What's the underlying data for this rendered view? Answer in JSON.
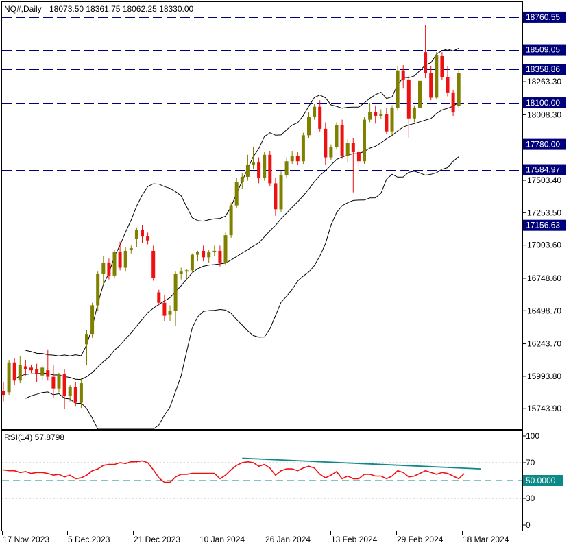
{
  "header": {
    "symbol": "NQ#,Daily",
    "ohlc": "18073.50 18361.75 18062.25 18330.00"
  },
  "colors": {
    "bull": "#808000",
    "bear": "#ee1111",
    "level_line": "#00007a",
    "level_badge": "#00007a",
    "band": "#000000",
    "rsi": "#ee1111",
    "trend": "#0b8a88",
    "rsi_mid": "#0b8a88",
    "current_badge": "#0b8a88",
    "axis": "#000000",
    "gray_line": "#aaaaaa"
  },
  "chart_data": [
    {
      "type": "candlestick",
      "title": "NQ#,Daily 18073.50 18361.75 18062.25 18330.00",
      "y_ticks": [
        "18263.30",
        "18008.30",
        "17503.40",
        "17253.50",
        "17003.60",
        "16748.60",
        "16498.70",
        "16243.70",
        "15993.80",
        "15743.90"
      ],
      "x_ticks": [
        "17 Nov 2023",
        "5 Dec 2023",
        "21 Dec 2023",
        "10 Jan 2024",
        "26 Jan 2024",
        "13 Feb 2024",
        "29 Feb 2024",
        "18 Mar 2024"
      ],
      "ylim": [
        15630,
        18870
      ],
      "horizontal_levels": [
        {
          "value": 18760.55,
          "label": "18760.55"
        },
        {
          "value": 18509.05,
          "label": "18509.05"
        },
        {
          "value": 18358.86,
          "label": "18358.86"
        },
        {
          "value": 18100.0,
          "label": "18100.00"
        },
        {
          "value": 17780.0,
          "label": "17780.00"
        },
        {
          "value": 17584.97,
          "label": "17584.97"
        },
        {
          "value": 17156.63,
          "label": "17156.63"
        }
      ],
      "current_price_line": 18330.0,
      "candles": [
        {
          "o": 15880,
          "h": 15950,
          "l": 15800,
          "c": 15850
        },
        {
          "o": 15870,
          "h": 16120,
          "l": 15850,
          "c": 16100
        },
        {
          "o": 16100,
          "h": 16130,
          "l": 15930,
          "c": 15960
        },
        {
          "o": 15960,
          "h": 16150,
          "l": 15940,
          "c": 16080
        },
        {
          "o": 16070,
          "h": 16120,
          "l": 16000,
          "c": 16050
        },
        {
          "o": 16060,
          "h": 16080,
          "l": 16020,
          "c": 16040
        },
        {
          "o": 16050,
          "h": 16090,
          "l": 15950,
          "c": 16010
        },
        {
          "o": 16000,
          "h": 16080,
          "l": 15960,
          "c": 16060
        },
        {
          "o": 16040,
          "h": 16200,
          "l": 15960,
          "c": 15990
        },
        {
          "o": 15990,
          "h": 16080,
          "l": 15830,
          "c": 15900
        },
        {
          "o": 15900,
          "h": 16020,
          "l": 15870,
          "c": 16010
        },
        {
          "o": 16010,
          "h": 16050,
          "l": 15740,
          "c": 15840
        },
        {
          "o": 15840,
          "h": 15930,
          "l": 15800,
          "c": 15910
        },
        {
          "o": 15910,
          "h": 15950,
          "l": 15760,
          "c": 15790
        },
        {
          "o": 15790,
          "h": 15980,
          "l": 15750,
          "c": 15940
        },
        {
          "o": 16240,
          "h": 16350,
          "l": 16080,
          "c": 16320
        },
        {
          "o": 16320,
          "h": 16560,
          "l": 16290,
          "c": 16540
        },
        {
          "o": 16540,
          "h": 16800,
          "l": 16500,
          "c": 16780
        },
        {
          "o": 16780,
          "h": 16920,
          "l": 16690,
          "c": 16870
        },
        {
          "o": 16870,
          "h": 16900,
          "l": 16740,
          "c": 16770
        },
        {
          "o": 16770,
          "h": 16970,
          "l": 16750,
          "c": 16950
        },
        {
          "o": 16950,
          "h": 17030,
          "l": 16810,
          "c": 16830
        },
        {
          "o": 16830,
          "h": 16990,
          "l": 16800,
          "c": 16960
        },
        {
          "o": 16970,
          "h": 17000,
          "l": 16940,
          "c": 16980
        },
        {
          "o": 17050,
          "h": 17140,
          "l": 16990,
          "c": 17120
        },
        {
          "o": 17120,
          "h": 17160,
          "l": 17020,
          "c": 17070
        },
        {
          "o": 17070,
          "h": 17100,
          "l": 17010,
          "c": 17040
        },
        {
          "o": 16960,
          "h": 17000,
          "l": 16730,
          "c": 16750
        },
        {
          "o": 16640,
          "h": 16660,
          "l": 16540,
          "c": 16560
        },
        {
          "o": 16560,
          "h": 16620,
          "l": 16420,
          "c": 16460
        },
        {
          "o": 16470,
          "h": 16540,
          "l": 16420,
          "c": 16500
        },
        {
          "o": 16500,
          "h": 16800,
          "l": 16380,
          "c": 16780
        },
        {
          "o": 16780,
          "h": 16830,
          "l": 16740,
          "c": 16800
        },
        {
          "o": 16800,
          "h": 16820,
          "l": 16740,
          "c": 16810
        },
        {
          "o": 16810,
          "h": 16940,
          "l": 16790,
          "c": 16930
        },
        {
          "o": 16930,
          "h": 16960,
          "l": 16880,
          "c": 16950
        },
        {
          "o": 16960,
          "h": 17000,
          "l": 16880,
          "c": 16910
        },
        {
          "o": 16910,
          "h": 16970,
          "l": 16870,
          "c": 16950
        },
        {
          "o": 16950,
          "h": 17000,
          "l": 16920,
          "c": 16960
        },
        {
          "o": 16960,
          "h": 17000,
          "l": 16840,
          "c": 16870
        },
        {
          "o": 16870,
          "h": 17100,
          "l": 16850,
          "c": 17080
        },
        {
          "o": 17080,
          "h": 17330,
          "l": 17060,
          "c": 17310
        },
        {
          "o": 17310,
          "h": 17520,
          "l": 17290,
          "c": 17490
        },
        {
          "o": 17490,
          "h": 17560,
          "l": 17440,
          "c": 17530
        },
        {
          "o": 17530,
          "h": 17700,
          "l": 17500,
          "c": 17620
        },
        {
          "o": 17620,
          "h": 17760,
          "l": 17590,
          "c": 17640
        },
        {
          "o": 17640,
          "h": 17680,
          "l": 17480,
          "c": 17520
        },
        {
          "o": 17520,
          "h": 17720,
          "l": 17500,
          "c": 17700
        },
        {
          "o": 17700,
          "h": 17730,
          "l": 17460,
          "c": 17480
        },
        {
          "o": 17480,
          "h": 17520,
          "l": 17230,
          "c": 17280
        },
        {
          "o": 17280,
          "h": 17570,
          "l": 17260,
          "c": 17540
        },
        {
          "o": 17540,
          "h": 17680,
          "l": 17520,
          "c": 17650
        },
        {
          "o": 17650,
          "h": 17730,
          "l": 17630,
          "c": 17690
        },
        {
          "o": 17690,
          "h": 17720,
          "l": 17620,
          "c": 17650
        },
        {
          "o": 17650,
          "h": 17870,
          "l": 17630,
          "c": 17850
        },
        {
          "o": 17850,
          "h": 18030,
          "l": 17830,
          "c": 17990
        },
        {
          "o": 17990,
          "h": 18090,
          "l": 17970,
          "c": 18070
        },
        {
          "o": 18070,
          "h": 18120,
          "l": 17880,
          "c": 17900
        },
        {
          "o": 17900,
          "h": 17950,
          "l": 17620,
          "c": 17680
        },
        {
          "o": 17680,
          "h": 17780,
          "l": 17660,
          "c": 17760
        },
        {
          "o": 17760,
          "h": 17950,
          "l": 17740,
          "c": 17930
        },
        {
          "o": 17930,
          "h": 17970,
          "l": 17670,
          "c": 17690
        },
        {
          "o": 17690,
          "h": 17820,
          "l": 17640,
          "c": 17790
        },
        {
          "o": 17790,
          "h": 17830,
          "l": 17410,
          "c": 17720
        },
        {
          "o": 17720,
          "h": 17740,
          "l": 17550,
          "c": 17650
        },
        {
          "o": 17650,
          "h": 17990,
          "l": 17630,
          "c": 17970
        },
        {
          "o": 17970,
          "h": 18100,
          "l": 17950,
          "c": 18030
        },
        {
          "o": 18030,
          "h": 18080,
          "l": 17940,
          "c": 18000
        },
        {
          "o": 18000,
          "h": 18050,
          "l": 17980,
          "c": 18010
        },
        {
          "o": 18010,
          "h": 18060,
          "l": 17860,
          "c": 17880
        },
        {
          "o": 17880,
          "h": 18080,
          "l": 17850,
          "c": 18060
        },
        {
          "o": 18060,
          "h": 18380,
          "l": 18040,
          "c": 18350
        },
        {
          "o": 18350,
          "h": 18390,
          "l": 18210,
          "c": 18280
        },
        {
          "o": 18280,
          "h": 18310,
          "l": 17830,
          "c": 17980
        },
        {
          "o": 17980,
          "h": 18080,
          "l": 17950,
          "c": 18060
        },
        {
          "o": 18060,
          "h": 18290,
          "l": 17940,
          "c": 18270
        },
        {
          "o": 18490,
          "h": 18700,
          "l": 18290,
          "c": 18330
        },
        {
          "o": 18330,
          "h": 18380,
          "l": 18120,
          "c": 18140
        },
        {
          "o": 18140,
          "h": 18490,
          "l": 18130,
          "c": 18470
        },
        {
          "o": 18460,
          "h": 18490,
          "l": 18280,
          "c": 18300
        },
        {
          "o": 18300,
          "h": 18380,
          "l": 18150,
          "c": 18180
        },
        {
          "o": 18180,
          "h": 18200,
          "l": 18000,
          "c": 18030
        },
        {
          "o": 18073.5,
          "h": 18361.75,
          "l": 18062.25,
          "c": 18330
        }
      ]
    },
    {
      "type": "line",
      "title": "RSI(14) 57.8798",
      "ylim": [
        0,
        100
      ],
      "y_ticks": [
        "100",
        "70",
        "30",
        "0"
      ],
      "reference_levels": [
        70,
        50,
        30
      ],
      "current_value_label": "50.0000",
      "series": [
        {
          "name": "RSI(14)",
          "values": [
            62,
            61,
            61,
            59,
            60,
            58,
            59,
            59,
            58,
            56,
            57,
            54,
            56,
            52,
            53,
            56,
            61,
            63,
            67,
            68,
            68,
            70,
            69,
            71,
            71,
            72,
            70,
            62,
            53,
            48,
            48,
            54,
            57,
            57,
            58,
            58,
            58,
            58,
            58,
            52,
            56,
            62,
            67,
            70,
            71,
            70,
            66,
            68,
            64,
            56,
            61,
            63,
            63,
            61,
            64,
            66,
            64,
            57,
            53,
            56,
            60,
            52,
            55,
            52,
            52,
            57,
            57,
            55,
            55,
            52,
            55,
            61,
            59,
            54,
            55,
            58,
            61,
            59,
            57,
            59,
            58,
            55,
            52,
            57.88
          ]
        }
      ],
      "trendline": {
        "from_index": 43,
        "from_value": 75,
        "to_index": 83,
        "to_value": 63
      }
    }
  ]
}
